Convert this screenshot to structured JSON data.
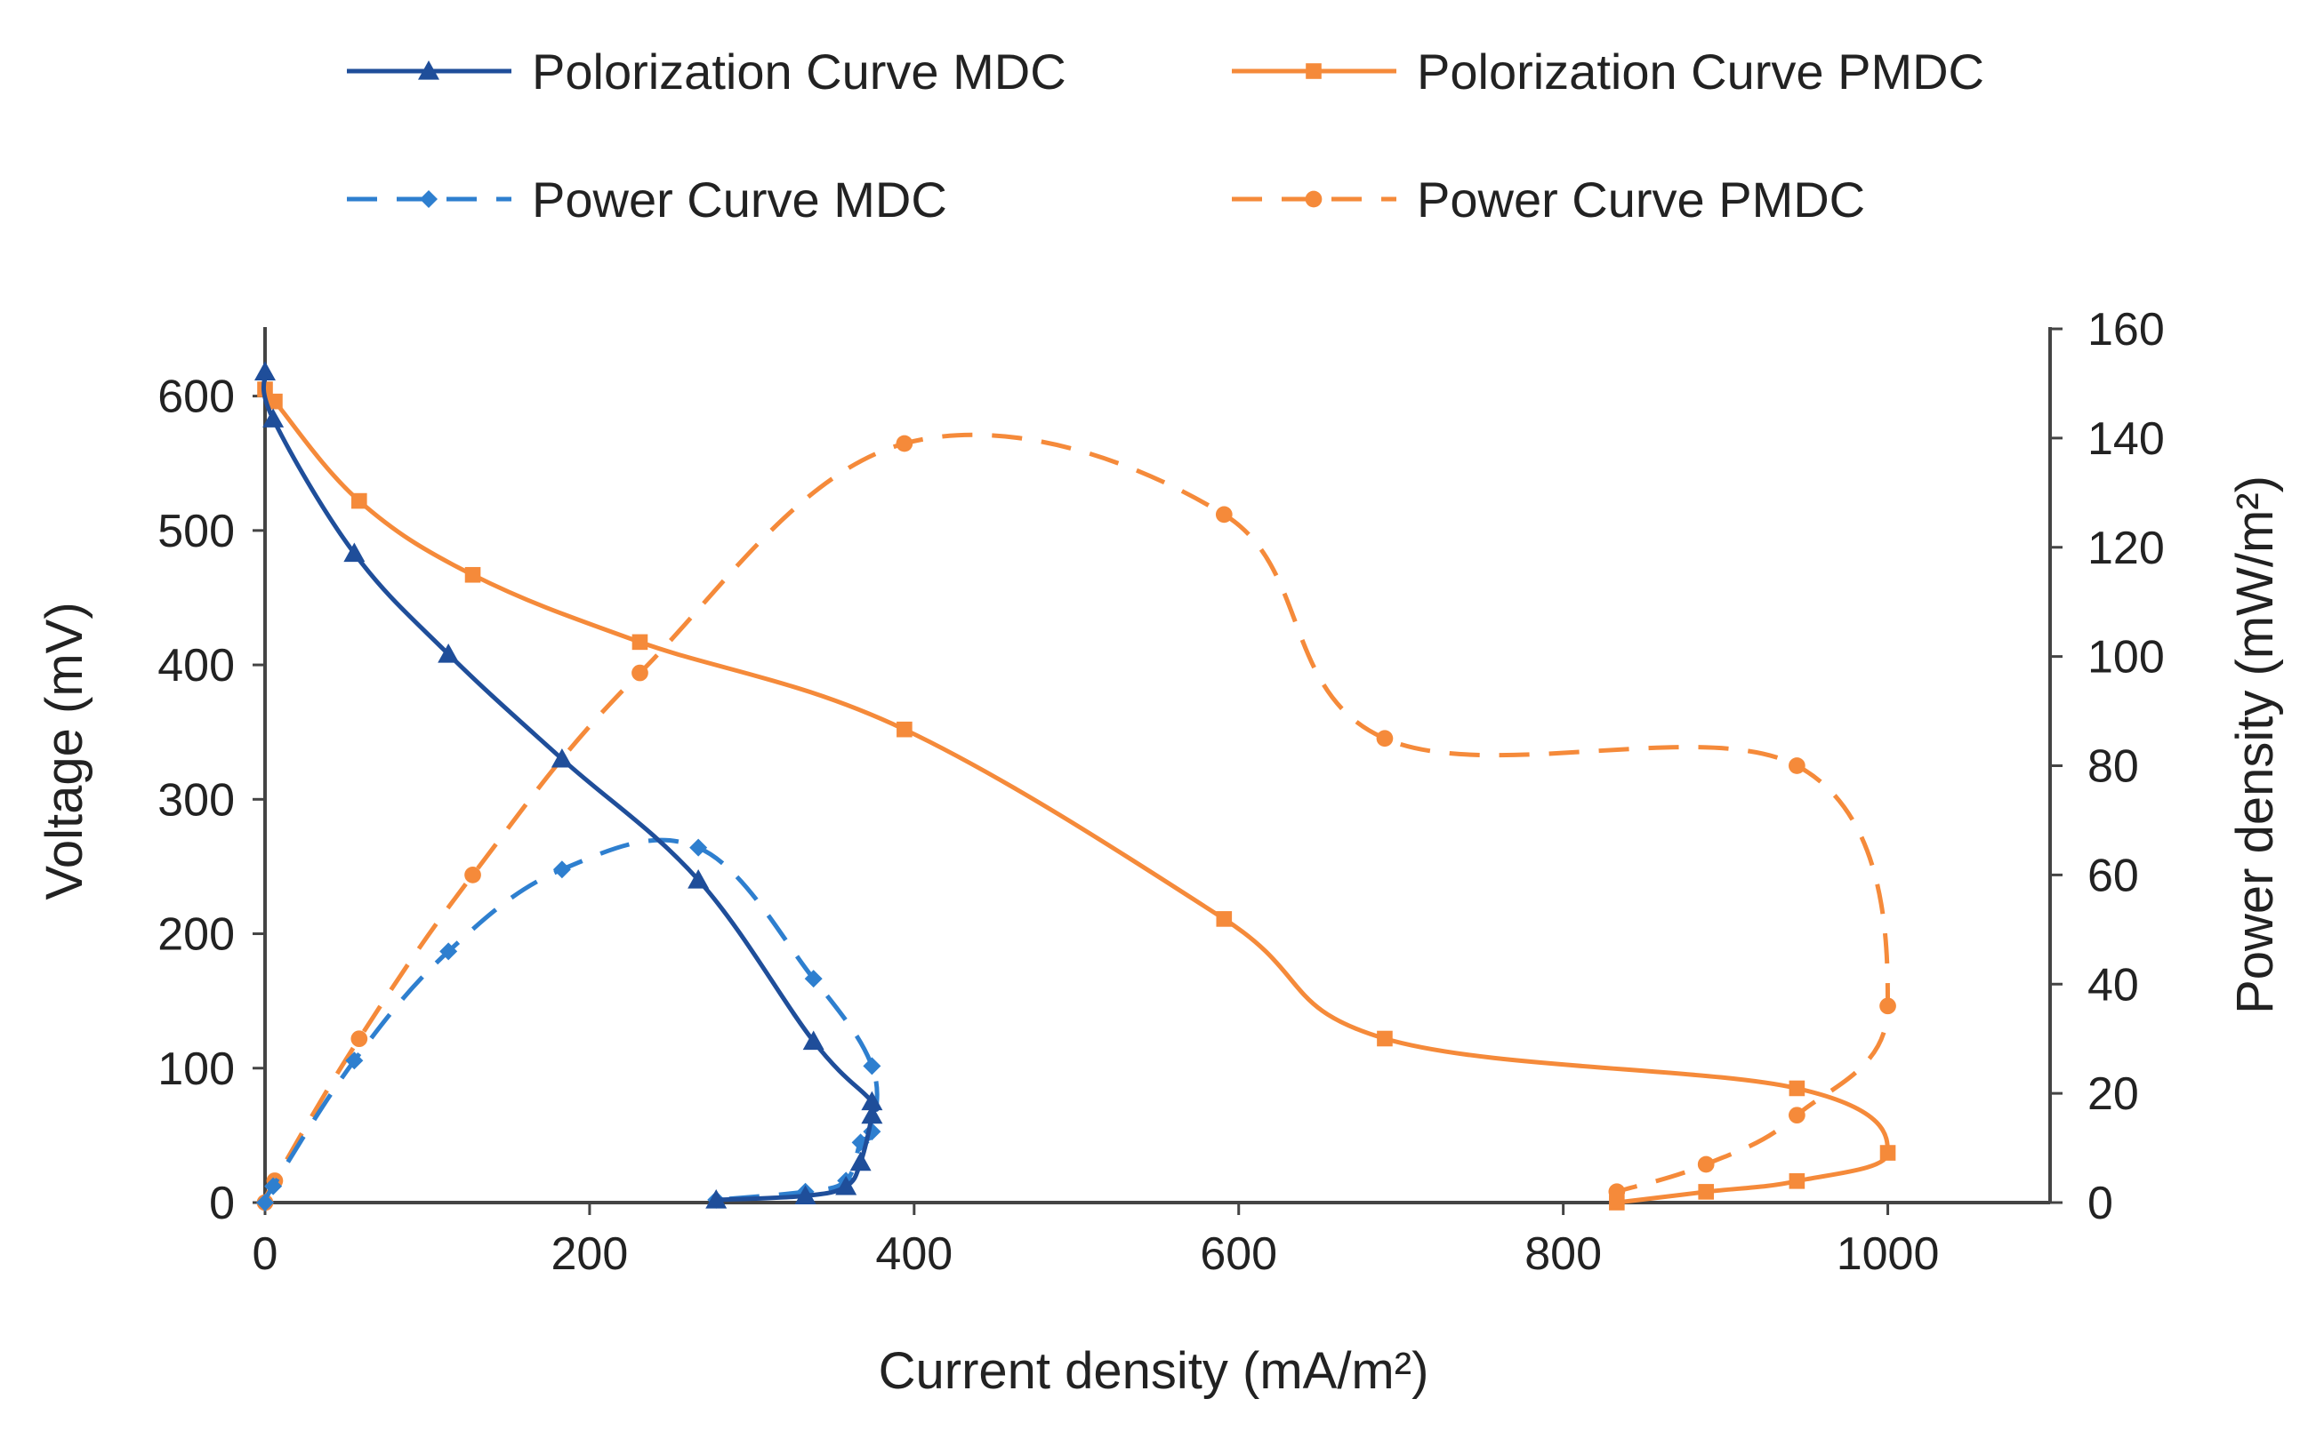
{
  "chart_data": {
    "type": "line",
    "title": "",
    "xlabel": "Current density (mA/m²)",
    "ylabel_left": "Voltage (mV)",
    "ylabel_right": "Power density (mW/m²)",
    "xlim": [
      0,
      1100
    ],
    "ylim_left": [
      0,
      650
    ],
    "ylim_right": [
      0,
      160
    ],
    "x_ticks": [
      "0",
      "200",
      "400",
      "600",
      "800",
      "1000"
    ],
    "y_left_ticks": [
      "0",
      "100",
      "200",
      "300",
      "400",
      "500",
      "600"
    ],
    "y_right_ticks": [
      "0",
      "20",
      "40",
      "60",
      "80",
      "100",
      "120",
      "140",
      "160"
    ],
    "grid": false,
    "legend_position": "top",
    "series": [
      {
        "name": "Polorization Curve MDC",
        "axis": "left",
        "color": "#1f4e9a",
        "line_style": "solid",
        "marker": "triangle",
        "x": [
          0,
          5,
          55,
          113,
          183,
          267,
          338,
          374,
          374,
          367,
          358,
          333,
          278
        ],
        "y": [
          618,
          583,
          483,
          408,
          330,
          240,
          120,
          75,
          65,
          30,
          12,
          5,
          2
        ]
      },
      {
        "name": "Polorization Curve PMDC",
        "axis": "left",
        "color": "#f58a3a",
        "line_style": "solid",
        "marker": "square",
        "x": [
          0,
          6,
          58,
          128,
          231,
          394,
          591,
          690,
          944,
          1000,
          944,
          888,
          833
        ],
        "y": [
          605,
          596,
          522,
          467,
          417,
          352,
          211,
          122,
          85,
          37,
          16,
          8,
          0
        ]
      },
      {
        "name": "Power Curve MDC",
        "axis": "right",
        "color": "#2e7fcf",
        "line_style": "dashed",
        "marker": "diamond",
        "x": [
          0,
          5,
          55,
          113,
          183,
          267,
          338,
          374,
          374,
          367,
          358,
          333,
          278
        ],
        "y": [
          0,
          3,
          26,
          46,
          61,
          65,
          41,
          25,
          13,
          11,
          4,
          2,
          0.5
        ]
      },
      {
        "name": "Power Curve PMDC",
        "axis": "right",
        "color": "#f58a3a",
        "line_style": "dashed",
        "marker": "circle",
        "x": [
          0,
          6,
          58,
          128,
          231,
          394,
          591,
          690,
          944,
          1000,
          944,
          888,
          833
        ],
        "y": [
          0,
          4,
          30,
          60,
          97,
          139,
          126,
          85,
          80,
          36,
          16,
          7,
          2
        ]
      }
    ]
  }
}
